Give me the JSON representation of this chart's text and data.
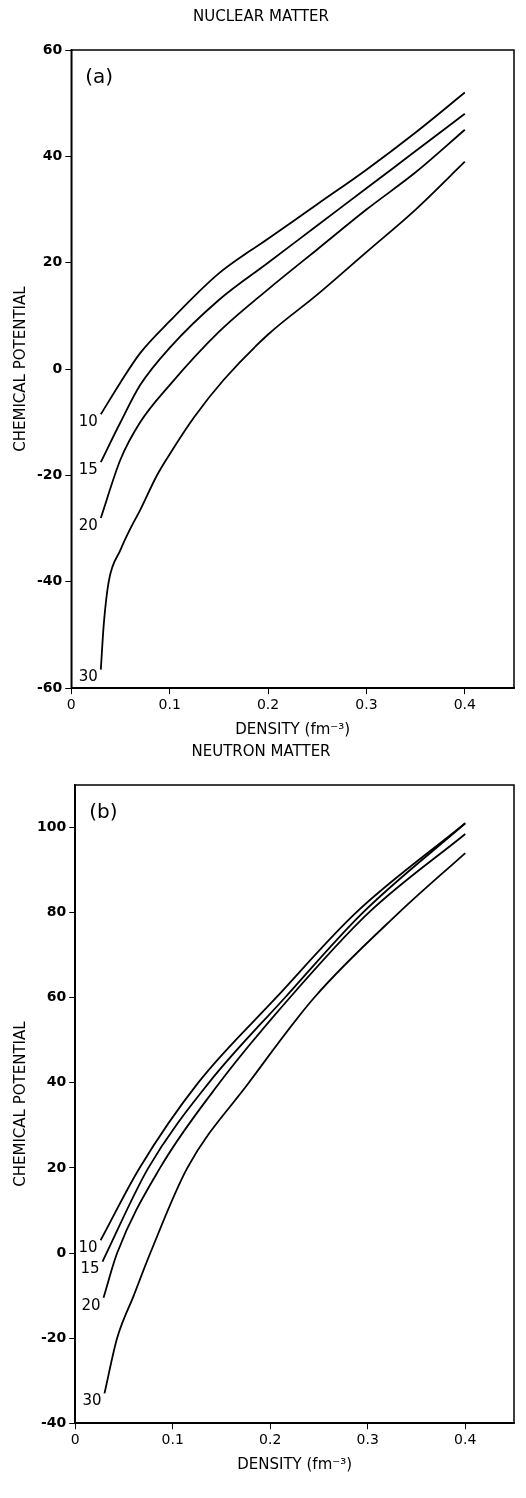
{
  "chart_data": [
    {
      "type": "line",
      "title": "NUCLEAR MATTER",
      "xlabel": "DENSITY (fm⁻³)",
      "ylabel": "CHEMICAL POTENTIAL",
      "annotations": [
        "(a)"
      ],
      "xlim": [
        0,
        0.45
      ],
      "xticks": [
        0,
        0.1,
        0.2,
        0.3,
        0.4
      ],
      "ylim": [
        -60,
        60
      ],
      "yticks": [
        -60,
        -40,
        -20,
        0,
        20,
        40,
        60
      ],
      "legend": false,
      "grid": false,
      "series": [
        {
          "name": "10",
          "color": "#000000",
          "x": [
            0.03,
            0.05,
            0.07,
            0.1,
            0.15,
            0.2,
            0.25,
            0.3,
            0.35,
            0.4
          ],
          "values": [
            -8.5,
            -2.5,
            3,
            9,
            18,
            24.5,
            31,
            37.5,
            44.5,
            52
          ]
        },
        {
          "name": "15",
          "color": "#000000",
          "x": [
            0.03,
            0.05,
            0.07,
            0.1,
            0.15,
            0.2,
            0.25,
            0.3,
            0.35,
            0.4
          ],
          "values": [
            -17.5,
            -10,
            -3,
            4,
            13,
            20,
            27,
            34,
            41,
            48
          ]
        },
        {
          "name": "20",
          "color": "#000000",
          "x": [
            0.03,
            0.05,
            0.07,
            0.1,
            0.15,
            0.2,
            0.25,
            0.3,
            0.35,
            0.4
          ],
          "values": [
            -28,
            -17,
            -10,
            -3,
            7,
            15,
            22.5,
            30,
            37,
            45
          ]
        },
        {
          "name": "30",
          "color": "#000000",
          "x": [
            0.03,
            0.033,
            0.038,
            0.05,
            0.06,
            0.07,
            0.087,
            0.1,
            0.125,
            0.155,
            0.2,
            0.25,
            0.3,
            0.35,
            0.4
          ],
          "values": [
            -56.5,
            -48,
            -40,
            -34,
            -30,
            -26.5,
            -20,
            -16,
            -9,
            -2,
            6.5,
            14,
            22,
            30,
            39
          ]
        }
      ]
    },
    {
      "type": "line",
      "title": "NEUTRON MATTER",
      "xlabel": "DENSITY (fm⁻³)",
      "ylabel": "CHEMICAL POTENTIAL",
      "annotations": [
        "(b)"
      ],
      "xlim": [
        0,
        0.45
      ],
      "xticks": [
        0,
        0.1,
        0.2,
        0.3,
        0.4
      ],
      "ylim": [
        -40,
        110
      ],
      "yticks": [
        -40,
        -20,
        0,
        20,
        40,
        60,
        80,
        100
      ],
      "legend": false,
      "grid": false,
      "series": [
        {
          "name": "10",
          "color": "#000000",
          "x": [
            0.026,
            0.066,
            0.126,
            0.206,
            0.288,
            0.4
          ],
          "values": [
            3,
            20,
            40,
            60,
            80,
            101
          ]
        },
        {
          "name": "15",
          "color": "#000000",
          "x": [
            0.028,
            0.075,
            0.137,
            0.215,
            0.295,
            0.4
          ],
          "values": [
            -2,
            20,
            40,
            60,
            80,
            101
          ]
        },
        {
          "name": "20",
          "color": "#000000",
          "x": [
            0.029,
            0.043,
            0.087,
            0.148,
            0.22,
            0.301,
            0.4
          ],
          "values": [
            -10.5,
            0,
            20,
            40,
            60,
            80,
            98.5
          ]
        },
        {
          "name": "30",
          "color": "#000000",
          "x": [
            0.03,
            0.043,
            0.06,
            0.077,
            0.115,
            0.178,
            0.245,
            0.332,
            0.4
          ],
          "values": [
            -33,
            -20,
            -10,
            0,
            20,
            40,
            60,
            80,
            94
          ]
        }
      ]
    }
  ]
}
